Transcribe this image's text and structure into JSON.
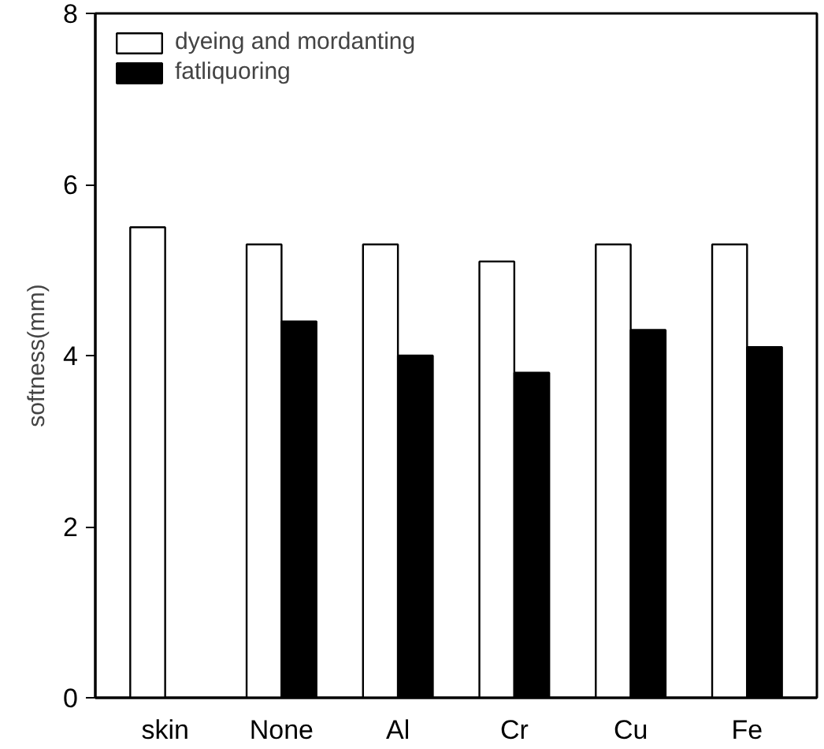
{
  "chart_data": {
    "type": "bar",
    "ylabel": "softness(mm)",
    "categories": [
      "skin",
      "None",
      "Al",
      "Cr",
      "Cu",
      "Fe"
    ],
    "series": [
      {
        "name": "dyeing and mordanting",
        "color": "#ffffff",
        "values": [
          5.5,
          5.3,
          5.3,
          5.1,
          5.3,
          5.3
        ]
      },
      {
        "name": "fatliquoring",
        "color": "#000000",
        "values": [
          null,
          4.4,
          4.0,
          3.8,
          4.3,
          4.1
        ]
      }
    ],
    "ylim": [
      0,
      8
    ],
    "yticks": [
      0,
      2,
      4,
      6,
      8
    ],
    "grid": false,
    "legend": "top left"
  }
}
